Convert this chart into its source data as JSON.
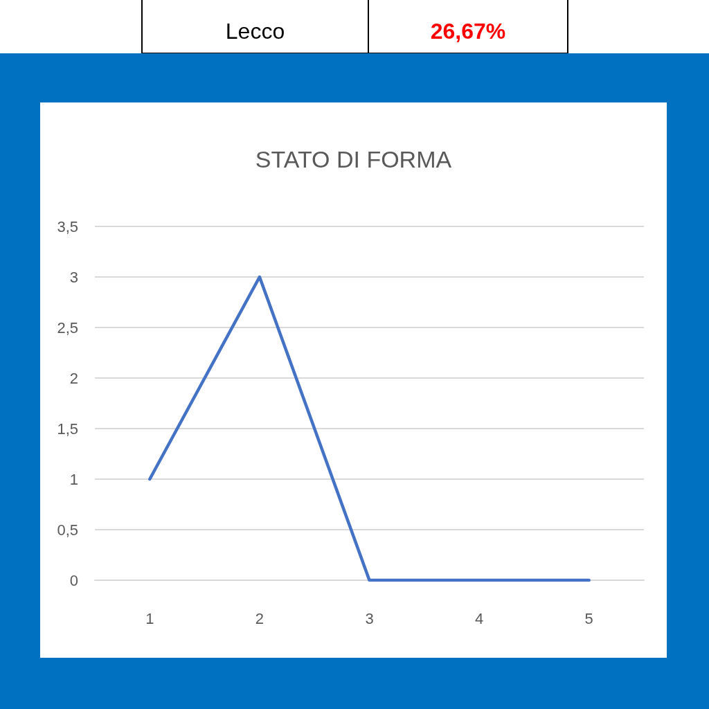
{
  "chart_data": {
    "type": "line",
    "title": "STATO DI FORMA",
    "annotations": [
      "Lecco",
      "26,67%"
    ],
    "categories": [
      "1",
      "2",
      "3",
      "4",
      "5"
    ],
    "series": [
      {
        "color": "#4472c4",
        "values": [
          1,
          3,
          0,
          0,
          0
        ]
      }
    ],
    "ylim": [
      0,
      3.5
    ],
    "yticks": [
      0,
      {
        "value": 0.5,
        "label": "0,5"
      },
      1,
      {
        "value": 1.5,
        "label": "1,5"
      },
      2,
      {
        "value": 2.5,
        "label": "2,5"
      },
      3,
      {
        "value": 3.5,
        "label": "3,5"
      }
    ],
    "grid": "y",
    "marker": "none",
    "line_style": "solid"
  }
}
